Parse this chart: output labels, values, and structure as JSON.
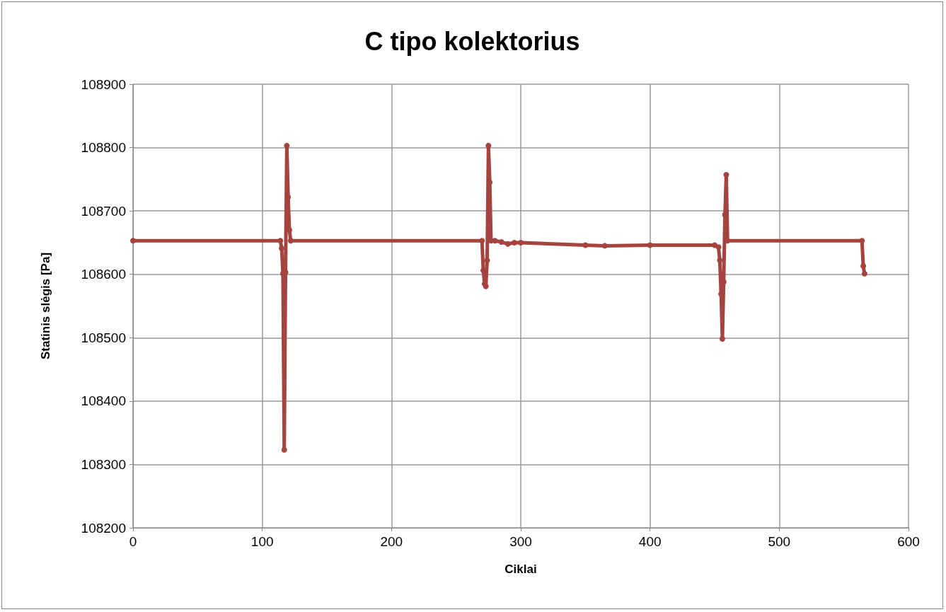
{
  "chart_data": {
    "type": "line",
    "title": "C tipo kolektorius",
    "xlabel": "Ciklai",
    "ylabel": "Statinis slėgis [Pa]",
    "series": [
      {
        "color": "#a5443f",
        "x": [
          0,
          114,
          115,
          116,
          117,
          118,
          119,
          120,
          121,
          122,
          270,
          271,
          272,
          273,
          274,
          275,
          276,
          277,
          280,
          285,
          290,
          295,
          300,
          350,
          365,
          400,
          450,
          453,
          454,
          455,
          456,
          457,
          458,
          459,
          460,
          564,
          565,
          566
        ],
        "values": [
          108653,
          108653,
          108641,
          108601,
          108323,
          108603,
          108803,
          108722,
          108670,
          108653,
          108653,
          108606,
          108585,
          108581,
          108622,
          108803,
          108745,
          108653,
          108653,
          108651,
          108648,
          108650,
          108650,
          108646,
          108645,
          108646,
          108646,
          108643,
          108622,
          108569,
          108498,
          108588,
          108694,
          108757,
          108653,
          108653,
          108613,
          108601
        ]
      }
    ],
    "xlim": [
      0,
      600
    ],
    "xticks": [
      0,
      100,
      200,
      300,
      400,
      500,
      600
    ],
    "ylim": [
      108200,
      108900
    ],
    "yticks": [
      108200,
      108300,
      108400,
      108500,
      108600,
      108700,
      108800,
      108900
    ],
    "grid": true,
    "marker": "circle",
    "line_style": "solid"
  }
}
